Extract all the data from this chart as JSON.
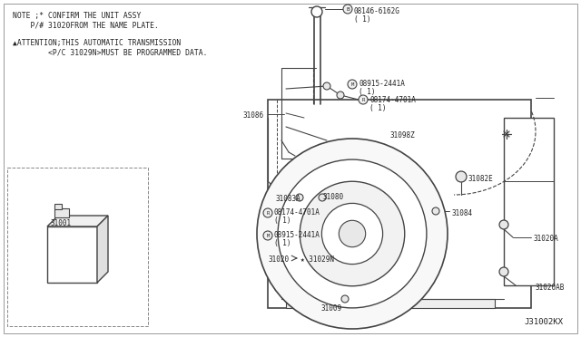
{
  "bg_color": "#ffffff",
  "diagram_id": "J31002KX",
  "line_color": "#444444",
  "text_color": "#222222",
  "note_lines": [
    "NOTE ;* CONFIRM THE UNIT ASSY",
    "    P/# 31020FROM THE NAME PLATE.",
    "",
    "*ATTENTION;THIS AUTOMATIC TRANSMISSION",
    "        <P/C 31029N>MUST BE PROGRAMMED DATA."
  ],
  "font_size_note": 5.8,
  "font_size_label": 5.5,
  "font_size_diag": 6.5
}
